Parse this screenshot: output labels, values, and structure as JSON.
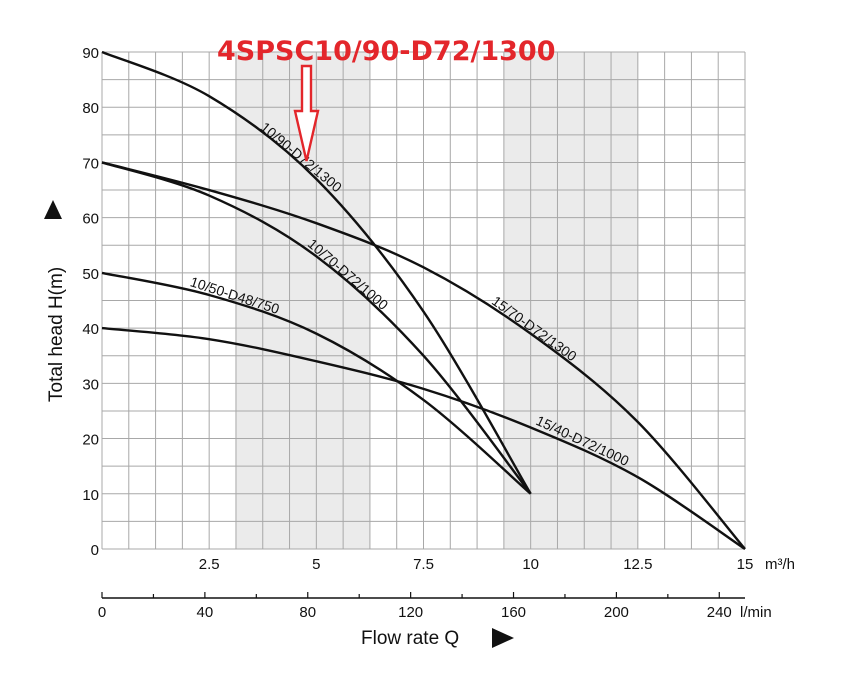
{
  "chart_data": {
    "type": "line",
    "title": "",
    "annotation": "4SPSC10/90-D72/1300",
    "xlabel": "Flow rate Q",
    "ylabel": "Total head H(m)",
    "x_unit_primary": "m³/h",
    "x_unit_secondary": "l/min",
    "xlim": [
      0,
      15
    ],
    "ylim": [
      0,
      90
    ],
    "x_ticks_primary": [
      "2.5",
      "5",
      "7.5",
      "10",
      "12.5",
      "15"
    ],
    "x_ticks_secondary": [
      "0",
      "40",
      "80",
      "120",
      "160",
      "200",
      "240"
    ],
    "y_ticks": [
      "0",
      "10",
      "20",
      "30",
      "40",
      "50",
      "60",
      "70",
      "80",
      "90"
    ],
    "grid": true,
    "highlight_bands_m3h": [
      [
        3.125,
        6.25
      ],
      [
        9.375,
        12.5
      ]
    ],
    "series": [
      {
        "name": "10/90-D72/1300",
        "x": [
          0,
          2.5,
          5,
          7.5,
          10
        ],
        "y": [
          90,
          82,
          67,
          43,
          10
        ]
      },
      {
        "name": "10/70-D72/1000",
        "x": [
          0,
          2.5,
          5,
          7.5,
          10
        ],
        "y": [
          70,
          64,
          53,
          35,
          10
        ]
      },
      {
        "name": "10/50-D48/750",
        "x": [
          0,
          2.5,
          5,
          7.5,
          10
        ],
        "y": [
          50,
          46,
          39,
          27,
          10
        ]
      },
      {
        "name": "15/70-D72/1300",
        "x": [
          0,
          2.5,
          5,
          7.5,
          10,
          12.5,
          15
        ],
        "y": [
          70,
          65,
          59,
          51,
          39,
          23,
          0
        ]
      },
      {
        "name": "15/40-D72/1000",
        "x": [
          0,
          2.5,
          5,
          7.5,
          10,
          12.5,
          15
        ],
        "y": [
          40,
          38,
          34,
          29,
          22,
          13,
          0
        ]
      }
    ]
  }
}
